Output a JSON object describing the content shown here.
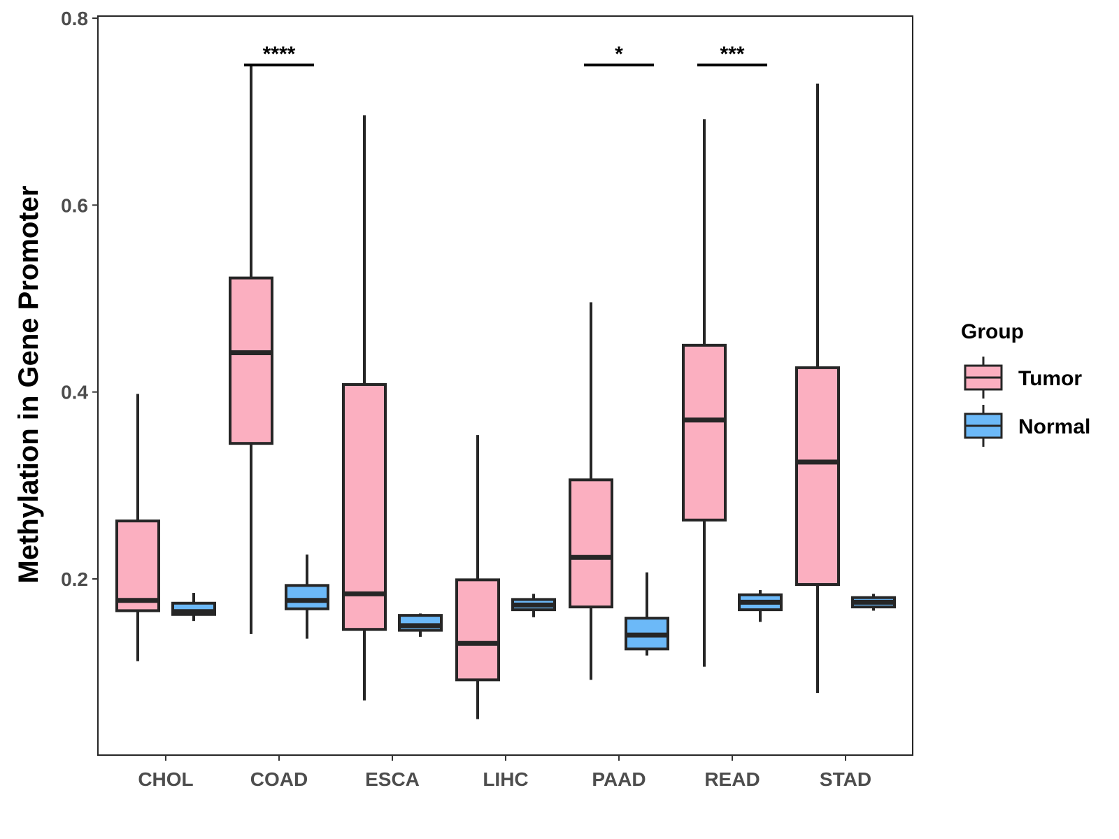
{
  "chart_data": {
    "type": "boxplot",
    "title": "",
    "xlabel": "",
    "ylabel": "Methylation in Gene Promoter",
    "ylim": [
      0.0,
      0.8
    ],
    "yticks": [
      0.2,
      0.4,
      0.6,
      0.8
    ],
    "ytick_labels": [
      "0.2",
      "0.4",
      "0.6",
      "0.8"
    ],
    "categories": [
      "CHOL",
      "COAD",
      "ESCA",
      "LIHC",
      "PAAD",
      "READ",
      "STAD"
    ],
    "legend": {
      "title": "Group",
      "position": "right"
    },
    "colors": {
      "Tumor": "#FBAFC0",
      "Normal": "#6CB9F8",
      "outline": "#262626"
    },
    "series": [
      {
        "name": "Tumor",
        "boxes": [
          {
            "category": "CHOL",
            "min": 0.112,
            "q1": 0.166,
            "median": 0.177,
            "q3": 0.262,
            "max": 0.398
          },
          {
            "category": "COAD",
            "min": 0.141,
            "q1": 0.345,
            "median": 0.442,
            "q3": 0.522,
            "max": 0.75
          },
          {
            "category": "ESCA",
            "min": 0.07,
            "q1": 0.146,
            "median": 0.184,
            "q3": 0.408,
            "max": 0.696
          },
          {
            "category": "LIHC",
            "min": 0.05,
            "q1": 0.092,
            "median": 0.131,
            "q3": 0.199,
            "max": 0.354
          },
          {
            "category": "PAAD",
            "min": 0.092,
            "q1": 0.17,
            "median": 0.223,
            "q3": 0.306,
            "max": 0.496
          },
          {
            "category": "READ",
            "min": 0.106,
            "q1": 0.263,
            "median": 0.37,
            "q3": 0.45,
            "max": 0.692
          },
          {
            "category": "STAD",
            "min": 0.078,
            "q1": 0.194,
            "median": 0.325,
            "q3": 0.426,
            "max": 0.73
          }
        ]
      },
      {
        "name": "Normal",
        "boxes": [
          {
            "category": "CHOL",
            "min": 0.155,
            "q1": 0.162,
            "median": 0.165,
            "q3": 0.174,
            "max": 0.185
          },
          {
            "category": "COAD",
            "min": 0.136,
            "q1": 0.168,
            "median": 0.177,
            "q3": 0.193,
            "max": 0.226
          },
          {
            "category": "ESCA",
            "min": 0.138,
            "q1": 0.145,
            "median": 0.15,
            "q3": 0.161,
            "max": 0.163
          },
          {
            "category": "LIHC",
            "min": 0.159,
            "q1": 0.167,
            "median": 0.172,
            "q3": 0.178,
            "max": 0.184
          },
          {
            "category": "PAAD",
            "min": 0.118,
            "q1": 0.125,
            "median": 0.14,
            "q3": 0.158,
            "max": 0.207
          },
          {
            "category": "READ",
            "min": 0.154,
            "q1": 0.167,
            "median": 0.175,
            "q3": 0.183,
            "max": 0.188
          },
          {
            "category": "STAD",
            "min": 0.166,
            "q1": 0.17,
            "median": 0.175,
            "q3": 0.18,
            "max": 0.184
          }
        ]
      }
    ],
    "significance": [
      {
        "category": "COAD",
        "label": "****",
        "y": 0.75
      },
      {
        "category": "PAAD",
        "label": "*",
        "y": 0.75
      },
      {
        "category": "READ",
        "label": "***",
        "y": 0.75
      }
    ]
  }
}
